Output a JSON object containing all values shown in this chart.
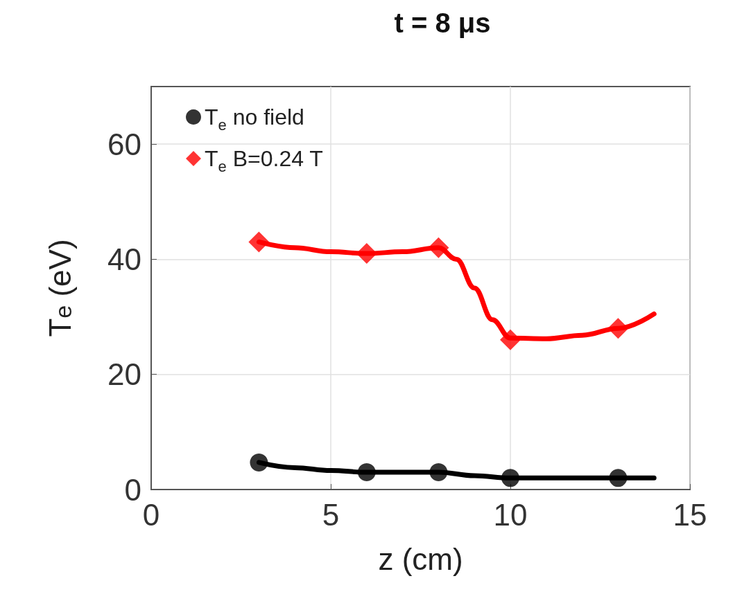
{
  "chart_data": {
    "type": "scatter",
    "title": "t = 8 μs",
    "xlabel": "z (cm)",
    "ylabel": "T$_{e}$ (eV)",
    "xlim": [
      0,
      15
    ],
    "xticks": [
      0,
      5,
      10,
      15
    ],
    "ylim": [
      0,
      70
    ],
    "yticks": [
      0,
      20,
      40,
      60
    ],
    "grid": true,
    "legend": "top left",
    "series": [
      {
        "name": "T$_{e}$ no field",
        "color": "#000000",
        "marker": "circle",
        "x": [
          3,
          6,
          8,
          10,
          13
        ],
        "values": [
          4.7,
          3,
          3,
          2,
          2
        ]
      },
      {
        "name": "T$_{e}$ B=0.24 T",
        "color": "#ff0000",
        "marker": "diamond",
        "x": [
          3,
          6,
          8,
          10,
          13
        ],
        "values": [
          43,
          41,
          42,
          26,
          28
        ]
      },
      {
        "type": "line",
        "color": "#000000",
        "marker": "none",
        "x": [
          3,
          4,
          5,
          6,
          7,
          8,
          9,
          10,
          11,
          12,
          13,
          14
        ],
        "values": [
          4.7,
          3.8,
          3.3,
          3,
          3,
          3,
          2.4,
          2,
          2,
          2,
          2,
          2
        ]
      },
      {
        "type": "line",
        "color": "#ff0000",
        "marker": "none",
        "x": [
          3,
          4,
          5,
          6,
          7,
          8,
          8.5,
          9,
          9.5,
          10,
          11,
          12,
          13,
          14
        ],
        "values": [
          43,
          42,
          41.3,
          41,
          41.3,
          42,
          40,
          35,
          29.5,
          26.3,
          26.2,
          26.8,
          28,
          30.5
        ]
      }
    ]
  }
}
